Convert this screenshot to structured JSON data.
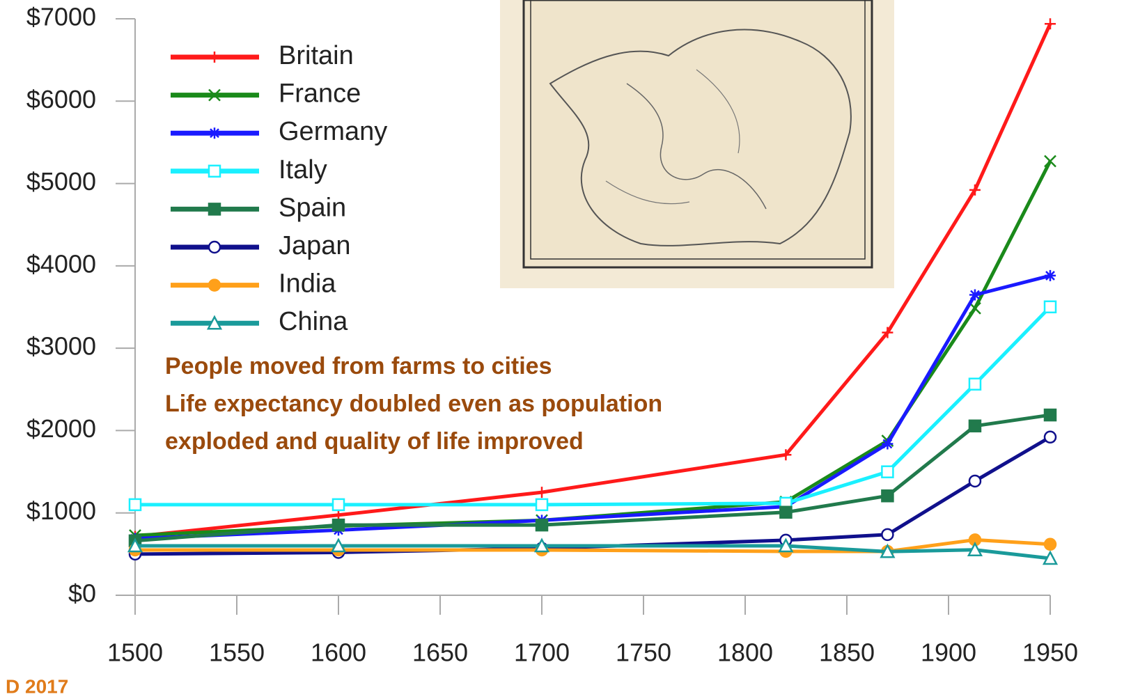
{
  "chart_data": {
    "type": "line",
    "x": [
      1500,
      1600,
      1700,
      1820,
      1870,
      1913,
      1950
    ],
    "xlim": [
      1500,
      1950
    ],
    "xticks": [
      1500,
      1550,
      1600,
      1650,
      1700,
      1750,
      1800,
      1850,
      1900,
      1950
    ],
    "ylim": [
      0,
      7000
    ],
    "yticks": [
      {
        "value": 0,
        "label": "$0"
      },
      {
        "value": 1000,
        "label": "$1000"
      },
      {
        "value": 2000,
        "label": "$2000"
      },
      {
        "value": 3000,
        "label": "$3000"
      },
      {
        "value": 4000,
        "label": "$4000"
      },
      {
        "value": 5000,
        "label": "$5000"
      },
      {
        "value": 6000,
        "label": "$6000"
      },
      {
        "value": 7000,
        "label": "$7000"
      }
    ],
    "legend": "top-left",
    "series": [
      {
        "name": "Britain",
        "color": "#ff1a1a",
        "marker": "plus",
        "values": [
          714,
          974,
          1250,
          1706,
          3190,
          4921,
          6939
        ]
      },
      {
        "name": "France",
        "color": "#1a8a1a",
        "marker": "x",
        "values": [
          727,
          841,
          910,
          1135,
          1876,
          3485,
          5271
        ]
      },
      {
        "name": "Germany",
        "color": "#1a1aff",
        "marker": "star",
        "values": [
          688,
          791,
          910,
          1077,
          1839,
          3648,
          3881
        ]
      },
      {
        "name": "Italy",
        "color": "#1af0ff",
        "marker": "square-open",
        "values": [
          1100,
          1100,
          1100,
          1117,
          1499,
          2564,
          3502
        ]
      },
      {
        "name": "Spain",
        "color": "#217a4c",
        "marker": "square",
        "values": [
          661,
          853,
          853,
          1008,
          1207,
          2056,
          2189
        ]
      },
      {
        "name": "Japan",
        "color": "#10108c",
        "marker": "circle-open",
        "values": [
          500,
          520,
          570,
          669,
          737,
          1387,
          1921
        ]
      },
      {
        "name": "India",
        "color": "#ffa01a",
        "marker": "circle",
        "values": [
          550,
          550,
          550,
          533,
          533,
          673,
          619
        ]
      },
      {
        "name": "China",
        "color": "#1a9a9a",
        "marker": "triangle-open",
        "values": [
          600,
          600,
          600,
          600,
          530,
          552,
          448
        ]
      }
    ],
    "annotations": [
      "People moved from farms to cities",
      "Life expectancy doubled even as population",
      "exploded and quality of life improved"
    ]
  },
  "footer": "D 2017"
}
